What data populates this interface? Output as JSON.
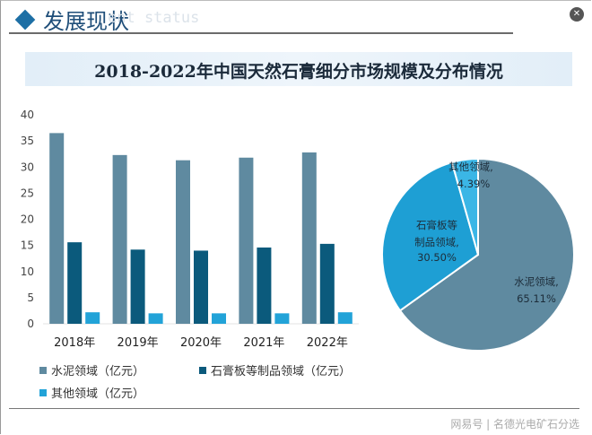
{
  "header": {
    "title": "发展现状",
    "subtitle": "ent status"
  },
  "banner": {
    "title": "2018-2022年中国天然石膏细分市场规模及分布情况"
  },
  "colors": {
    "cement": "#5f8aa0",
    "gypsum_board": "#0b5a7c",
    "other": "#22a3d8",
    "pie_gypsum": "#1e9fd4",
    "pie_other": "#3bb6e6"
  },
  "chart_data": [
    {
      "type": "bar",
      "categories": [
        "2018年",
        "2019年",
        "2020年",
        "2021年",
        "2022年"
      ],
      "ylim": [
        0,
        40
      ],
      "yticks": [
        "0",
        "5",
        "10",
        "15",
        "20",
        "25",
        "30",
        "35",
        "40"
      ],
      "grid": false,
      "legend_position": "bottom",
      "series": [
        {
          "name": "水泥领域（亿元）",
          "values": [
            36.5,
            32.3,
            31.3,
            31.8,
            32.8
          ]
        },
        {
          "name": "石膏板等制品领域（亿元）",
          "values": [
            15.6,
            14.2,
            14.0,
            14.6,
            15.3
          ]
        },
        {
          "name": "其他领域（亿元）",
          "values": [
            2.2,
            2.0,
            2.0,
            2.0,
            2.2
          ]
        }
      ]
    },
    {
      "type": "pie",
      "slices": [
        {
          "label": "水泥领域,",
          "pct_label": "65.11%",
          "value": 65.11
        },
        {
          "label_line1": "石膏板等",
          "label_line2": "制品领域,",
          "pct_label": "30.50%",
          "value": 30.5
        },
        {
          "label": "其他领域,",
          "pct_label": "4.39%",
          "value": 4.39
        }
      ]
    }
  ],
  "footer": {
    "text": "网易号 | 名德光电矿石分选"
  }
}
